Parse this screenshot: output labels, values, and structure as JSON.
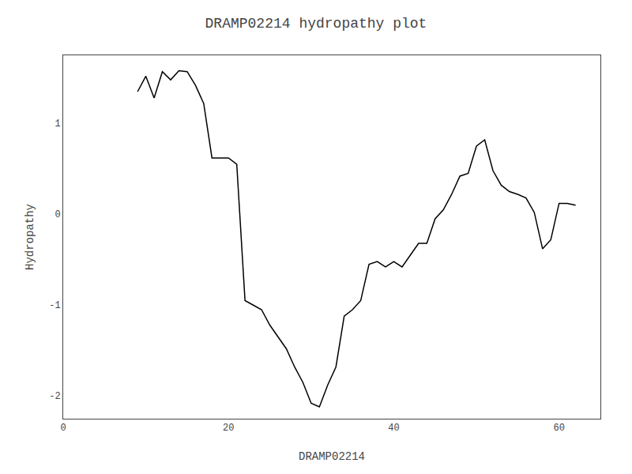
{
  "chart_data": {
    "type": "line",
    "title": "DRAMP02214 hydropathy plot",
    "xlabel": "DRAMP02214",
    "ylabel": "Hydropathy",
    "x": [
      9,
      10,
      11,
      12,
      13,
      14,
      15,
      16,
      17,
      18,
      19,
      20,
      21,
      22,
      23,
      24,
      25,
      26,
      27,
      28,
      29,
      30,
      31,
      32,
      33,
      34,
      35,
      36,
      37,
      38,
      39,
      40,
      41,
      42,
      43,
      44,
      45,
      46,
      47,
      48,
      49,
      50,
      51,
      52,
      53,
      54,
      55,
      56,
      57,
      58,
      59,
      60,
      61,
      62
    ],
    "values": [
      1.35,
      1.52,
      1.28,
      1.57,
      1.48,
      1.58,
      1.57,
      1.42,
      1.22,
      0.62,
      0.62,
      0.62,
      0.55,
      -0.95,
      -1.0,
      -1.05,
      -1.22,
      -1.35,
      -1.48,
      -1.68,
      -1.85,
      -2.08,
      -2.12,
      -1.88,
      -1.68,
      -1.12,
      -1.05,
      -0.95,
      -0.55,
      -0.52,
      -0.58,
      -0.52,
      -0.58,
      -0.45,
      -0.32,
      -0.32,
      -0.05,
      0.05,
      0.22,
      0.42,
      0.45,
      0.75,
      0.82,
      0.48,
      0.32,
      0.25,
      0.22,
      0.18,
      0.02,
      -0.38,
      -0.28,
      0.12,
      0.12,
      0.1
    ],
    "color": "#000000",
    "xlim": [
      0,
      65
    ],
    "ylim": [
      -2.25,
      1.75
    ],
    "xticks": [
      0,
      20,
      40,
      60
    ],
    "yticks": [
      -2,
      -1,
      0,
      1
    ],
    "grid": false
  }
}
